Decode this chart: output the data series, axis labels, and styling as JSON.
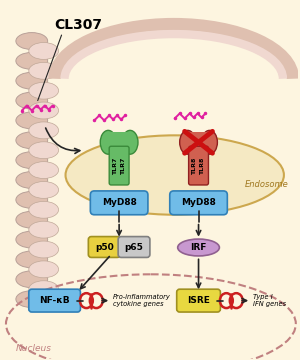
{
  "bg_color": "#fdf5e0",
  "membrane_outer_color": "#dfc0b0",
  "membrane_inner_color": "#f0d8d0",
  "endosome_fill": "#f5e8c0",
  "endosome_border": "#c8a040",
  "tlr7_color": "#66bb66",
  "tlr7_edge": "#3a8a3a",
  "tlr8_color": "#d06050",
  "tlr8_edge": "#902020",
  "myd88_fill": "#70bce8",
  "myd88_edge": "#3080b8",
  "p50_fill": "#e8d040",
  "p50_edge": "#a09020",
  "p65_fill": "#c8c8c8",
  "p65_edge": "#808080",
  "irf_fill": "#c898d0",
  "irf_edge": "#906090",
  "nfkb_fill": "#70bce8",
  "nfkb_edge": "#3080b8",
  "isre_fill": "#e8d840",
  "isre_edge": "#a09020",
  "gene_color": "#cc2020",
  "arrow_color": "#252525",
  "cl307_color": "#e020a0",
  "x_color": "#cc1010",
  "nucleus_border": "#c08080",
  "endosome_label_color": "#a07820",
  "title": "CL307",
  "endosome_label": "Endosome",
  "myd88_label": "MyD88",
  "p50_label": "p50",
  "p65_label": "p65",
  "irf_label": "IRF",
  "nfkb_label": "NF-κB",
  "isre_label": "ISRE",
  "pro_inflam_label": "Pro-inflammatory\ncytokine genes",
  "type1_ifn_label": "Type I\nIFN genes",
  "nucleus_label": "Nucleus",
  "tlr7_label": "TLR7",
  "tlr8_label": "TLR8"
}
